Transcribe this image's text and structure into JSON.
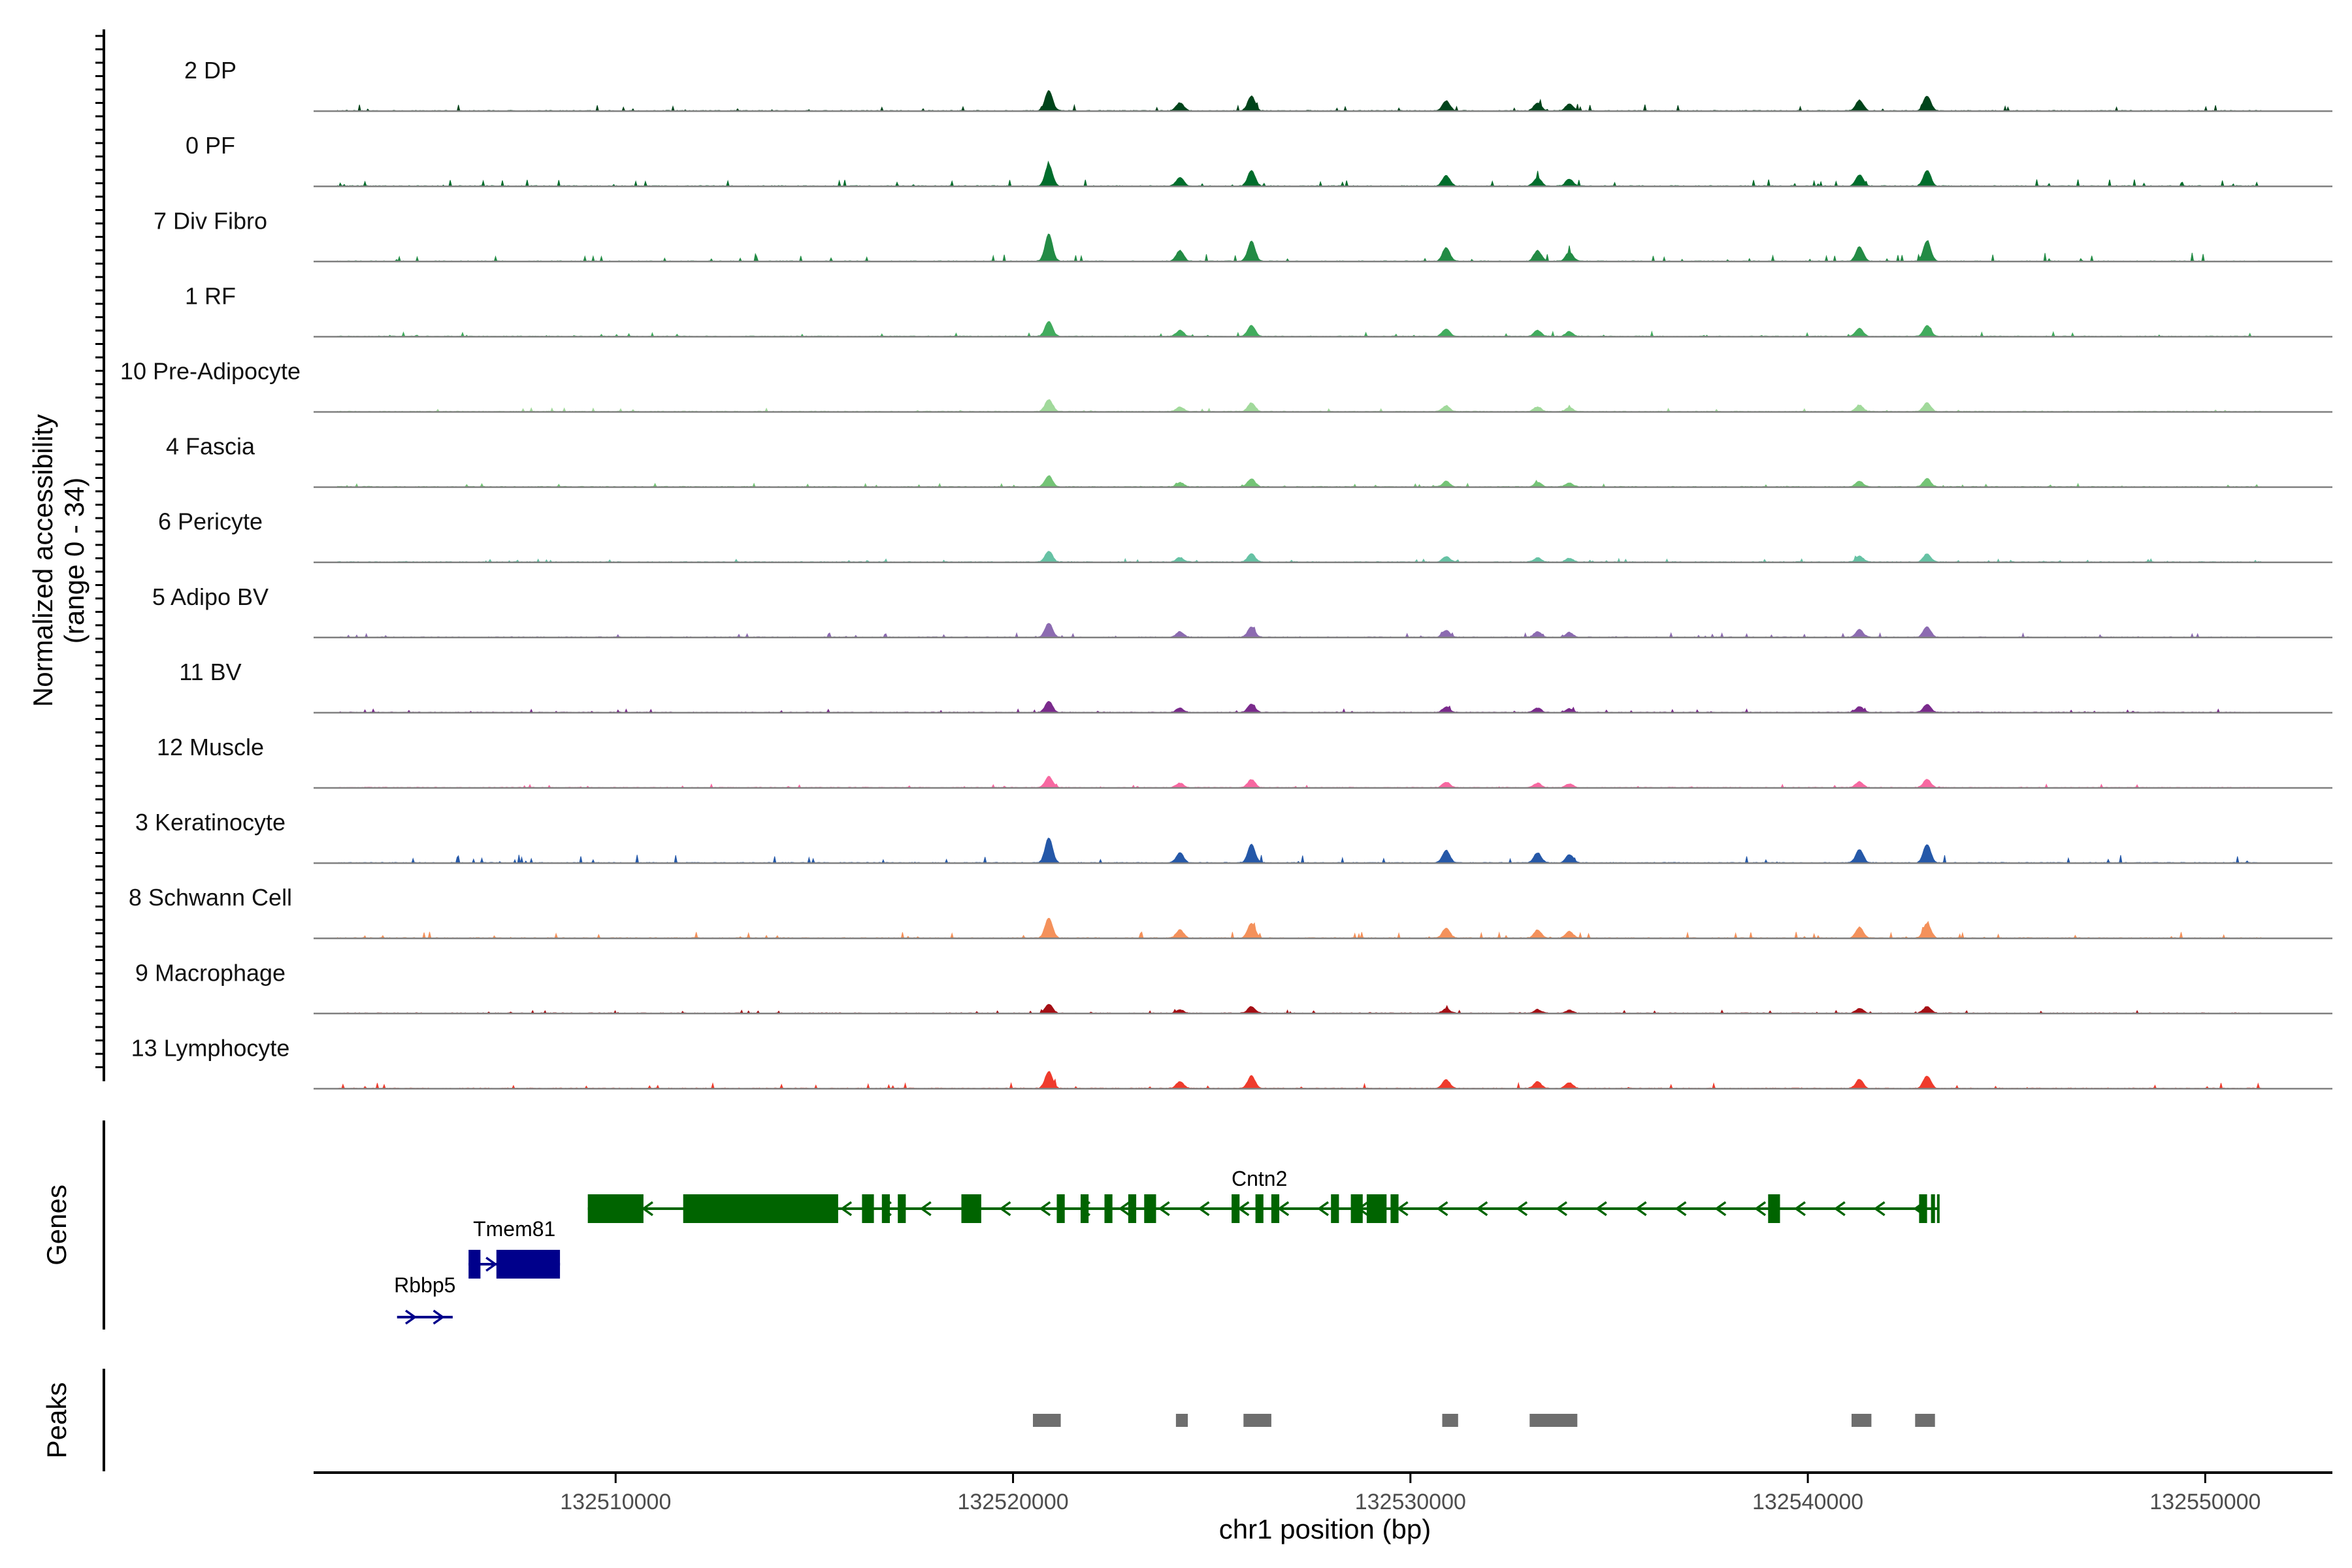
{
  "chart_data": {
    "type": "area",
    "xlabel": "chr1 position (bp)",
    "ylabel": "Normalized accessibility",
    "ylabel_range": "(range 0 - 34)",
    "xlim": [
      132502400,
      132553200
    ],
    "x_ticks": [
      132510000,
      132520000,
      132530000,
      132540000,
      132550000
    ],
    "x_tick_labels": [
      "132510000",
      "132520000",
      "132530000",
      "132540000",
      "132550000"
    ],
    "signal_range": [
      0,
      34
    ],
    "common_peaks": [
      {
        "center": 132520900,
        "height": 0.3
      },
      {
        "center": 132524200,
        "height": 0.12
      },
      {
        "center": 132526000,
        "height": 0.22
      },
      {
        "center": 132530900,
        "height": 0.15
      },
      {
        "center": 132533200,
        "height": 0.12
      },
      {
        "center": 132534000,
        "height": 0.1
      },
      {
        "center": 132541300,
        "height": 0.16
      },
      {
        "center": 132543000,
        "height": 0.22
      }
    ],
    "series": [
      {
        "name": "2 DP",
        "color": "#00441b",
        "peak_scale": 1.0
      },
      {
        "name": "0 PF",
        "color": "#006d2c",
        "peak_scale": 1.05
      },
      {
        "name": "7 Div Fibro",
        "color": "#238b45",
        "peak_scale": 1.35
      },
      {
        "name": "1 RF",
        "color": "#41ab5d",
        "peak_scale": 0.75
      },
      {
        "name": "10 Pre-Adipocyte",
        "color": "#a1d99b",
        "peak_scale": 0.6
      },
      {
        "name": "4 Fascia",
        "color": "#74c476",
        "peak_scale": 0.55
      },
      {
        "name": "6 Pericyte",
        "color": "#66c2a4",
        "peak_scale": 0.55
      },
      {
        "name": "5 Adipo BV",
        "color": "#8c6bb1",
        "peak_scale": 0.7
      },
      {
        "name": "11 BV",
        "color": "#7a2a8c",
        "peak_scale": 0.55
      },
      {
        "name": "12 Muscle",
        "color": "#f768a1",
        "peak_scale": 0.55
      },
      {
        "name": "3 Keratinocyte",
        "color": "#2558a8",
        "peak_scale": 1.25
      },
      {
        "name": "8 Schwann Cell",
        "color": "#f4915b",
        "peak_scale": 1.0
      },
      {
        "name": "9 Macrophage",
        "color": "#a50f15",
        "peak_scale": 0.45
      },
      {
        "name": "13 Lymphocyte",
        "color": "#ef3b2c",
        "peak_scale": 0.85
      }
    ],
    "genes_track_label": "Genes",
    "peaks_track_label": "Peaks",
    "genes": [
      {
        "name": "Cntn2",
        "strand": "-",
        "color": "#006400",
        "start": 132509300,
        "end": 132543300,
        "exons": [
          [
            132509300,
            132510700
          ],
          [
            132511700,
            132515600
          ],
          [
            132516200,
            132516500
          ],
          [
            132516700,
            132516900
          ],
          [
            132517100,
            132517300
          ],
          [
            132518700,
            132519200
          ],
          [
            132521100,
            132521300
          ],
          [
            132521700,
            132521900
          ],
          [
            132522300,
            132522500
          ],
          [
            132522900,
            132523100
          ],
          [
            132523300,
            132523600
          ],
          [
            132525500,
            132525700
          ],
          [
            132526100,
            132526300
          ],
          [
            132526500,
            132526700
          ],
          [
            132528000,
            132528200
          ],
          [
            132528500,
            132528800
          ],
          [
            132528900,
            132529400
          ],
          [
            132529500,
            132529700
          ],
          [
            132539000,
            132539300
          ],
          [
            132542800,
            132543000
          ],
          [
            132543100,
            132543200
          ],
          [
            132543250,
            132543300
          ]
        ]
      },
      {
        "name": "Tmem81",
        "strand": "+",
        "color": "#00008b",
        "start": 132506300,
        "end": 132508600,
        "exons": [
          [
            132506300,
            132506600
          ],
          [
            132507000,
            132508600
          ]
        ]
      },
      {
        "name": "Rbbp5",
        "strand": "+",
        "color": "#00008b",
        "start": 132504500,
        "end": 132505900,
        "exons": []
      }
    ],
    "peaks": [
      [
        132520500,
        132521200
      ],
      [
        132524100,
        132524400
      ],
      [
        132525800,
        132526500
      ],
      [
        132530800,
        132531200
      ],
      [
        132533000,
        132534200
      ],
      [
        132541100,
        132541600
      ],
      [
        132542700,
        132543200
      ]
    ]
  },
  "colors": {
    "peak_bar": "#6e6e6e",
    "baseline": "#808080",
    "axis": "#000000"
  }
}
